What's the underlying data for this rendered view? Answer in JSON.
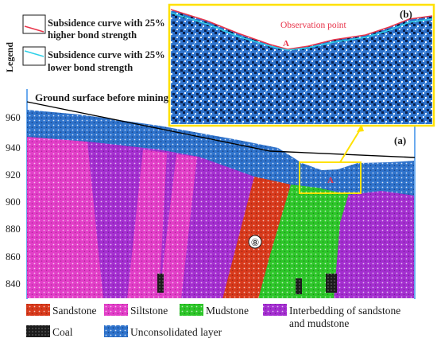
{
  "legend": {
    "title": "Legend",
    "items": [
      {
        "label_line1": "Subsidence curve with 25%",
        "label_line2": "higher bond strength",
        "color": "#e8344a"
      },
      {
        "label_line1": "Subsidence curve with 25%",
        "label_line2": "lower bond strength",
        "color": "#2fd0e8"
      }
    ]
  },
  "main_panel": {
    "label": "(a)",
    "ground_surface_label": "Ground surface before mining",
    "y_ticks": [
      "960",
      "940",
      "920",
      "900",
      "880",
      "860",
      "840"
    ],
    "observation_marker": "A",
    "fault_marker": "⑧"
  },
  "inset_panel": {
    "label": "(b)",
    "observation_label": "Observation point",
    "marker": "A"
  },
  "materials": [
    {
      "name": "Sandstone",
      "color": "#d83a1c"
    },
    {
      "name": "Siltstone",
      "color": "#e23fc8"
    },
    {
      "name": "Mudstone",
      "color": "#2ec62a"
    },
    {
      "name": "Interbedding of sandstone",
      "name_line2": "and mudstone",
      "color": "#a42fd0"
    },
    {
      "name": "Coal",
      "color": "#1c1c1c"
    },
    {
      "name": "Unconsolidated layer",
      "color": "#2f73cc"
    }
  ],
  "colors": {
    "frame_blue": "#3a8ee8",
    "inset_border": "#ffe100",
    "ground_line": "#000000"
  }
}
